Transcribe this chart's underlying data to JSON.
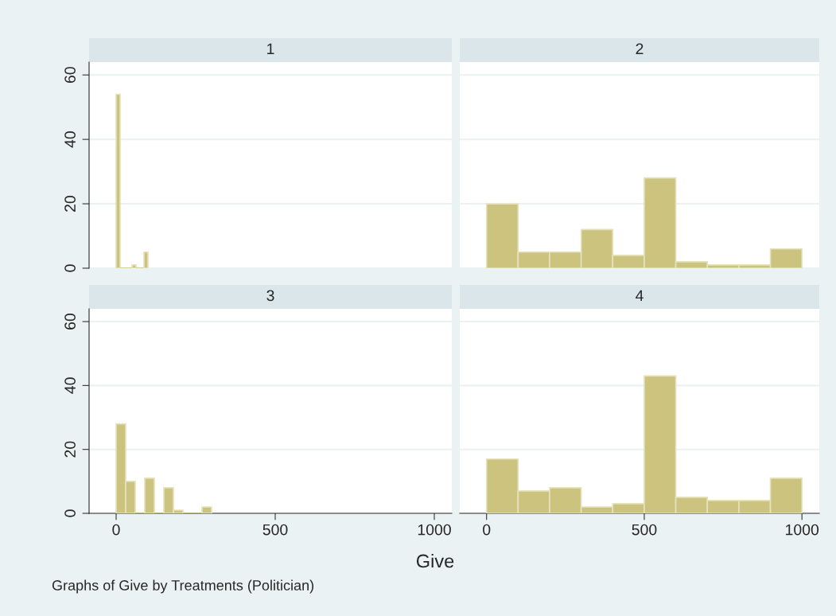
{
  "chart_data": [
    {
      "type": "histogram",
      "title": "1",
      "bins": [
        0,
        12.5,
        25,
        37.5,
        50,
        62.5,
        75,
        87.5,
        100
      ],
      "values": [
        54,
        0,
        0,
        0,
        1,
        0,
        0,
        5
      ],
      "color": "#cbc37e",
      "xlim": [
        -85,
        1055
      ],
      "ylim": [
        0,
        64
      ],
      "xticks": [
        0,
        500,
        1000
      ],
      "yticks": [
        0,
        20,
        40,
        60
      ],
      "grid": "y",
      "tick_labels": "y"
    },
    {
      "type": "histogram",
      "title": "2",
      "bins": [
        0,
        100,
        200,
        300,
        400,
        500,
        600,
        700,
        800,
        900,
        1000
      ],
      "values": [
        20,
        5,
        5,
        12,
        4,
        28,
        2,
        1,
        1,
        6
      ],
      "color": "#cbc37e",
      "xlim": [
        -85,
        1055
      ],
      "ylim": [
        0,
        64
      ],
      "xticks": [
        0,
        500,
        1000
      ],
      "yticks": [
        0,
        20,
        40,
        60
      ],
      "grid": "y",
      "tick_labels": false
    },
    {
      "type": "histogram",
      "title": "3",
      "xlabel": "Give",
      "annotations": [
        "Graphs of Give by Treatments (Politician)"
      ],
      "bins": [
        0,
        30,
        60,
        90,
        120,
        150,
        180,
        210,
        240,
        270,
        300
      ],
      "values": [
        28,
        10,
        0,
        11,
        0,
        8,
        1,
        0,
        0,
        2
      ],
      "color": "#cbc37e",
      "xlim": [
        -85,
        1055
      ],
      "ylim": [
        0,
        64
      ],
      "xticks": [
        0,
        500,
        1000
      ],
      "yticks": [
        0,
        20,
        40,
        60
      ],
      "grid": "y"
    },
    {
      "type": "histogram",
      "title": "4",
      "bins": [
        0,
        100,
        200,
        300,
        400,
        500,
        600,
        700,
        800,
        900,
        1000
      ],
      "values": [
        17,
        7,
        8,
        2,
        3,
        43,
        5,
        4,
        4,
        11
      ],
      "color": "#cbc37e",
      "xlim": [
        -85,
        1055
      ],
      "ylim": [
        0,
        64
      ],
      "xticks": [
        0,
        500,
        1000
      ],
      "yticks": [
        0,
        20,
        40,
        60
      ],
      "grid": "y",
      "tick_labels": "x"
    }
  ]
}
